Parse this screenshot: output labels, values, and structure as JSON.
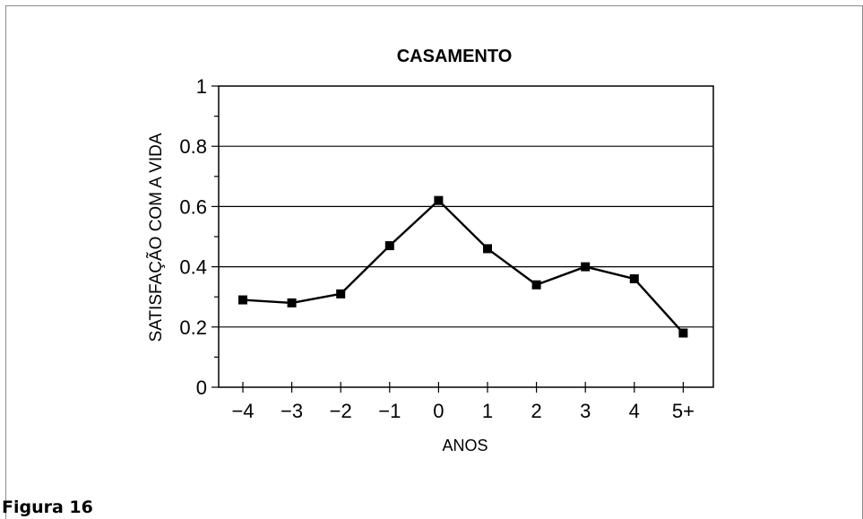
{
  "caption": "Figura 16",
  "chart_data": {
    "type": "line",
    "title": "CASAMENTO",
    "xlabel": "ANOS",
    "ylabel": "SATISFAÇÃO COM A VIDA",
    "categories": [
      "−4",
      "−3",
      "−2",
      "−1",
      "0",
      "1",
      "2",
      "3",
      "4",
      "5+"
    ],
    "series": [
      {
        "values": [
          0.29,
          0.28,
          0.31,
          0.47,
          0.62,
          0.46,
          0.34,
          0.4,
          0.36,
          0.18
        ]
      }
    ],
    "ylim": [
      0,
      1
    ],
    "yticks": [
      "0",
      "0.2",
      "0.4",
      "0.6",
      "0.8",
      "1"
    ],
    "grid": "horizontal",
    "legend": "none",
    "line_color": "#000000",
    "marker": "square"
  }
}
